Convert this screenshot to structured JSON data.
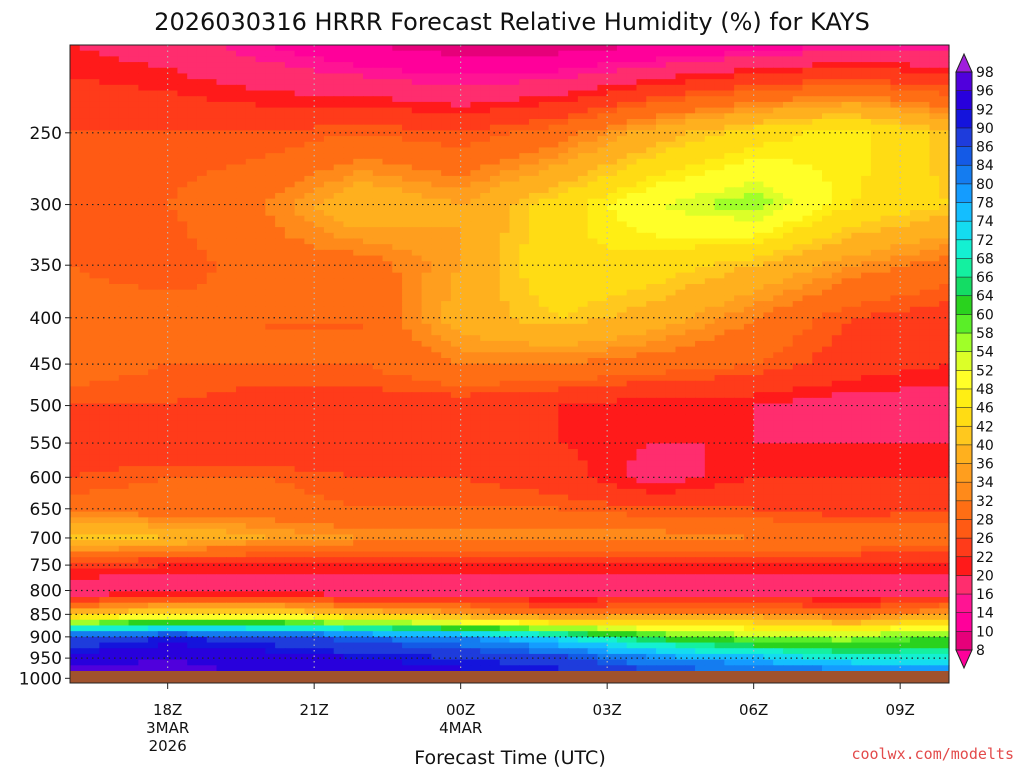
{
  "chart_data": {
    "type": "heatmap",
    "title": "2026030316 HRRR Forecast Relative Humidity (%) for KAYS",
    "xlabel": "Forecast Time (UTC)",
    "ylabel": "",
    "credit": "coolwx.com/modelts",
    "x_ticks": [
      {
        "label": "18Z",
        "sub": [
          "3MAR",
          "2026"
        ],
        "hour": 2
      },
      {
        "label": "21Z",
        "sub": [],
        "hour": 5
      },
      {
        "label": "00Z",
        "sub": [
          "4MAR"
        ],
        "hour": 8
      },
      {
        "label": "03Z",
        "sub": [],
        "hour": 11
      },
      {
        "label": "06Z",
        "sub": [],
        "hour": 14
      },
      {
        "label": "09Z",
        "sub": [],
        "hour": 17
      }
    ],
    "x_range": [
      0,
      18
    ],
    "y_ticks": [
      250,
      300,
      350,
      400,
      450,
      500,
      550,
      600,
      650,
      700,
      750,
      800,
      850,
      900,
      950,
      1000
    ],
    "y_range_hPa": [
      200,
      1012
    ],
    "y_scale": "log",
    "colorbar": {
      "levels": [
        8,
        10,
        14,
        16,
        20,
        22,
        26,
        28,
        32,
        34,
        36,
        40,
        42,
        46,
        48,
        52,
        54,
        58,
        60,
        64,
        66,
        68,
        72,
        74,
        78,
        80,
        84,
        86,
        90,
        92,
        96,
        98
      ],
      "colors": [
        "#e6007a",
        "#ff009a",
        "#ff1493",
        "#ff2d6e",
        "#ff1a1a",
        "#ff3b1a",
        "#ff5a14",
        "#ff6e14",
        "#ff8a1a",
        "#ff9e1e",
        "#ffb01e",
        "#ffc81e",
        "#ffdc14",
        "#ffee14",
        "#ffff28",
        "#dcff28",
        "#a0ff28",
        "#5aee28",
        "#2ad21e",
        "#14dc64",
        "#14f0a0",
        "#14f0d2",
        "#14dcf0",
        "#14beff",
        "#149cff",
        "#147cf0",
        "#145ae6",
        "#1e3cdc",
        "#1414dc",
        "#2800dc",
        "#5000dc",
        "#7814d2"
      ],
      "under_color": "#ff009a",
      "over_color": "#a01edc"
    },
    "grid": true,
    "times_hours": [
      0,
      2,
      4,
      6,
      8,
      10,
      12,
      14,
      16,
      18
    ],
    "pressure_levels": [
      200,
      250,
      300,
      350,
      400,
      450,
      500,
      550,
      600,
      650,
      700,
      750,
      800,
      850,
      900,
      950,
      1000
    ],
    "rh_values": [
      [
        20,
        18,
        14,
        10,
        8,
        8,
        10,
        12,
        14,
        14
      ],
      [
        26,
        26,
        26,
        28,
        26,
        30,
        38,
        44,
        48,
        40
      ],
      [
        26,
        28,
        32,
        40,
        36,
        44,
        52,
        56,
        46,
        42
      ],
      [
        28,
        26,
        30,
        30,
        36,
        46,
        44,
        40,
        34,
        30
      ],
      [
        30,
        30,
        28,
        28,
        38,
        42,
        38,
        32,
        26,
        24
      ],
      [
        30,
        28,
        28,
        28,
        32,
        32,
        30,
        28,
        24,
        22
      ],
      [
        26,
        26,
        24,
        24,
        24,
        22,
        20,
        20,
        18,
        18
      ],
      [
        24,
        22,
        22,
        22,
        22,
        22,
        20,
        20,
        20,
        20
      ],
      [
        26,
        28,
        28,
        26,
        26,
        24,
        18,
        22,
        22,
        22
      ],
      [
        30,
        30,
        30,
        28,
        28,
        28,
        26,
        26,
        24,
        26
      ],
      [
        42,
        40,
        36,
        34,
        34,
        34,
        34,
        32,
        32,
        30
      ],
      [
        24,
        22,
        22,
        22,
        22,
        22,
        22,
        22,
        22,
        22
      ],
      [
        16,
        16,
        16,
        16,
        16,
        16,
        16,
        16,
        16,
        16
      ],
      [
        40,
        46,
        46,
        40,
        36,
        30,
        34,
        34,
        30,
        36
      ],
      [
        86,
        90,
        88,
        84,
        80,
        72,
        62,
        56,
        56,
        60
      ],
      [
        94,
        96,
        94,
        92,
        90,
        88,
        80,
        76,
        70,
        70
      ],
      [
        98,
        98,
        96,
        96,
        94,
        92,
        90,
        90,
        88,
        88
      ]
    ],
    "ground_color": "#a0522d"
  }
}
